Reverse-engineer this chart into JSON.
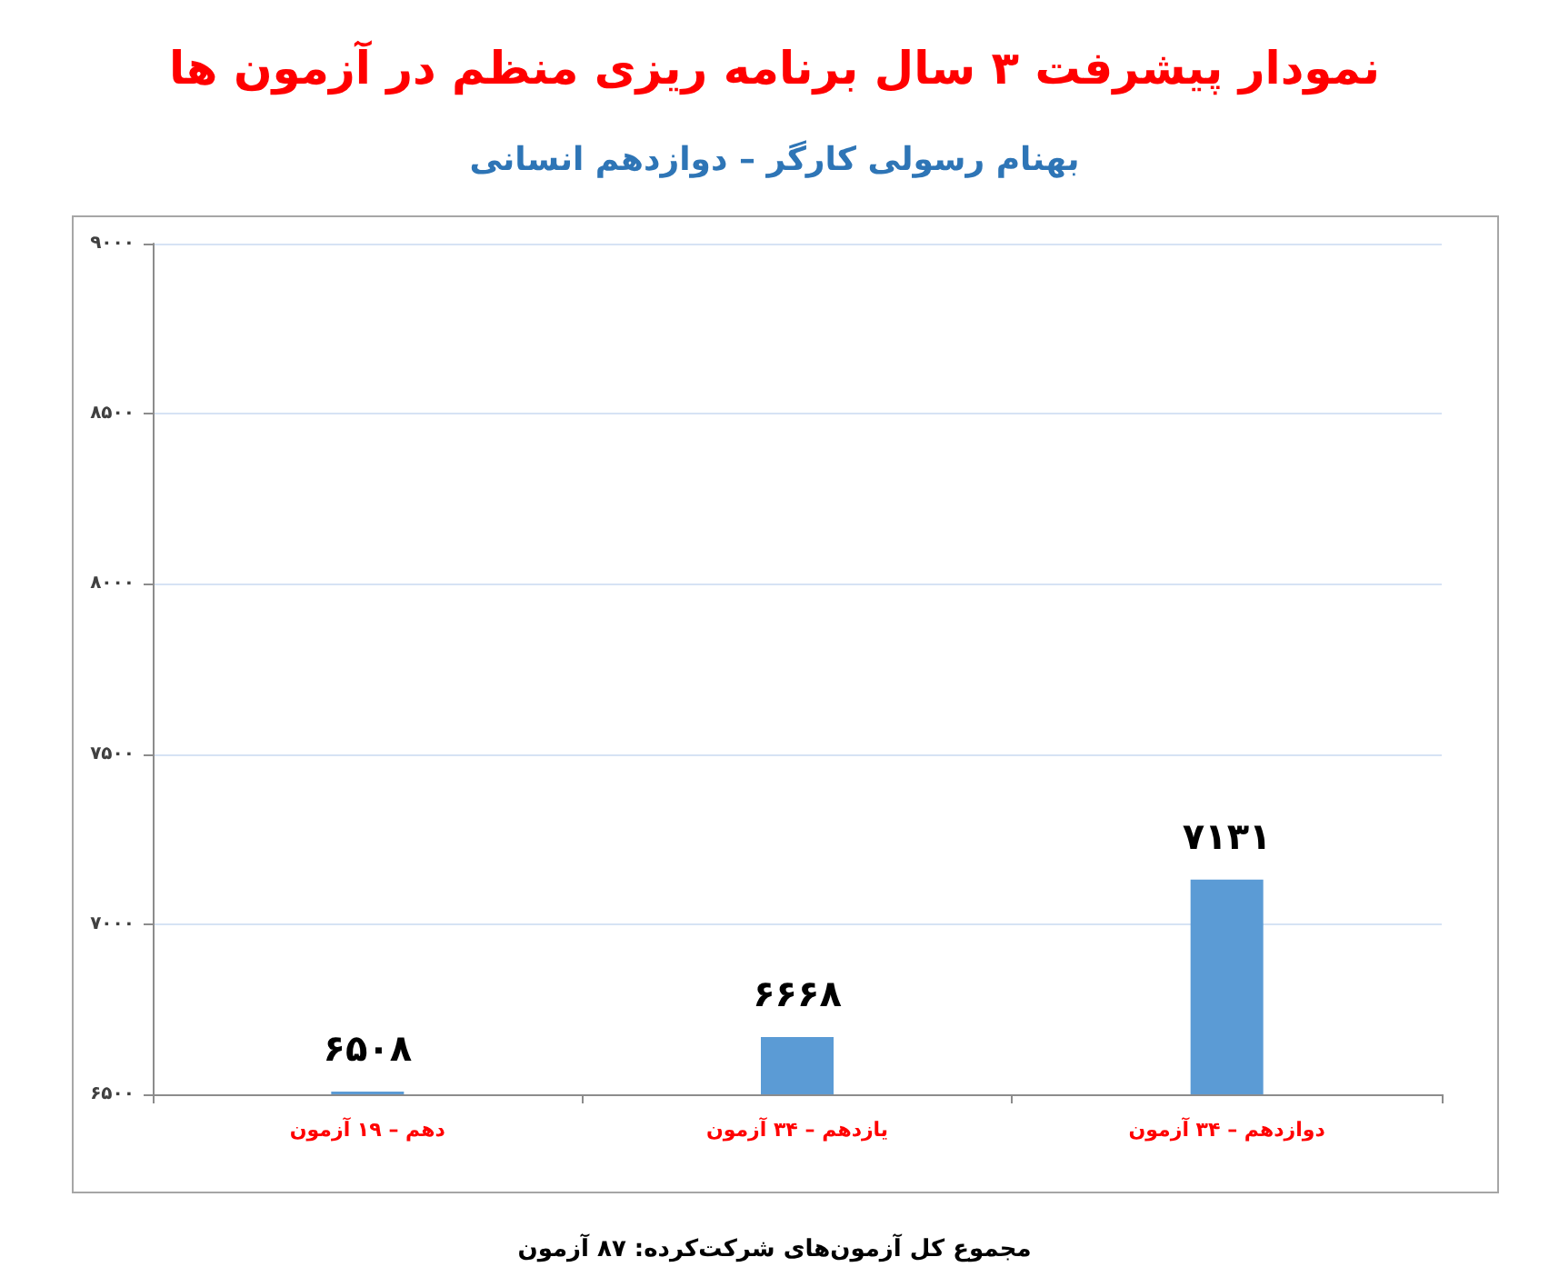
{
  "chart_data": {
    "type": "bar",
    "title": "نمودار پیشرفت ۳ سال برنامه ریزی منظم در آزمون ها",
    "subtitle": "بهنام رسولی کارگر – دوازدهم انسانی",
    "annotations": [
      "مجموع کل آزمون‌های شرکت‌کرده: ۸۷ آزمون"
    ],
    "categories": [
      "دهم – ۱۹ آزمون",
      "یازدهم – ۳۴ آزمون",
      "دوازدهم – ۳۴ آزمون"
    ],
    "values": [
      6508,
      6668,
      7131
    ],
    "color": "#5b9bd5",
    "value_labels": [
      "۶۵۰۸",
      "۶۶۶۸",
      "۷۱۳۱"
    ],
    "ylim": [
      6500,
      9000
    ],
    "yticks": [
      {
        "value": 6500,
        "label": "۶۵۰۰"
      },
      {
        "value": 7000,
        "label": "۷۰۰۰"
      },
      {
        "value": 7500,
        "label": "۷۵۰۰"
      },
      {
        "value": 8000,
        "label": "۸۰۰۰"
      },
      {
        "value": 8500,
        "label": "۸۵۰۰"
      },
      {
        "value": 9000,
        "label": "۹۰۰۰"
      }
    ],
    "grid": "y"
  }
}
